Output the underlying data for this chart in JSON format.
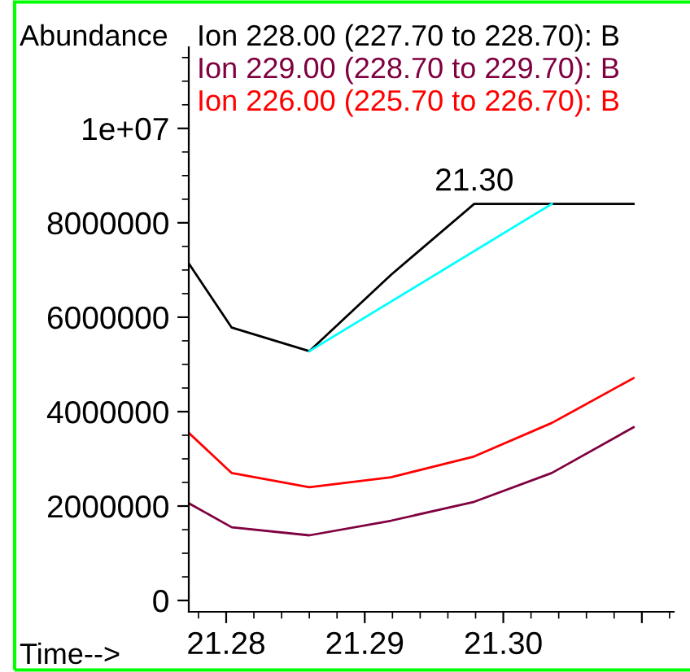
{
  "chart_data": {
    "type": "line",
    "xlabel": "Time-->",
    "ylabel": "Abundance",
    "x": [
      21.2773,
      21.2804,
      21.286,
      21.2919,
      21.2979,
      21.3035,
      21.3094
    ],
    "series": [
      {
        "name": "Ion 228.00 (227.70 to 228.70): B",
        "color": "#000000",
        "values": [
          7140000,
          5780000,
          5280000,
          6900000,
          8400000,
          8400000,
          8400000
        ]
      },
      {
        "name": "Ion 229.00 (228.70 to 229.70): B",
        "color": "#800040",
        "values": [
          2060000,
          1550000,
          1380000,
          1690000,
          2090000,
          2700000,
          3670000
        ]
      },
      {
        "name": "Ion 226.00 (225.70 to 226.70): B",
        "color": "#ff0000",
        "values": [
          3550000,
          2700000,
          2400000,
          2610000,
          3050000,
          3760000,
          4710000
        ]
      },
      {
        "color": "#00ffff",
        "x": [
          21.286,
          21.3035
        ],
        "values": [
          5280000,
          8400000
        ]
      }
    ],
    "annotations": [
      {
        "text": "21.30",
        "x": 21.2979,
        "y": 8400000
      }
    ],
    "xlim": [
      21.2773,
      21.3123
    ],
    "ylim": [
      -240000,
      11720000
    ],
    "xticks": [
      21.28,
      21.29,
      {
        "value": 21.3,
        "label": "21.30"
      },
      {
        "value": 21.31,
        "label": null
      }
    ],
    "yticks": [
      0,
      2000000,
      4000000,
      6000000,
      8000000,
      {
        "value": 10000000,
        "label": "1e+07"
      }
    ],
    "legend": "top",
    "grid": false,
    "marker": "none",
    "line_style": "solid"
  }
}
